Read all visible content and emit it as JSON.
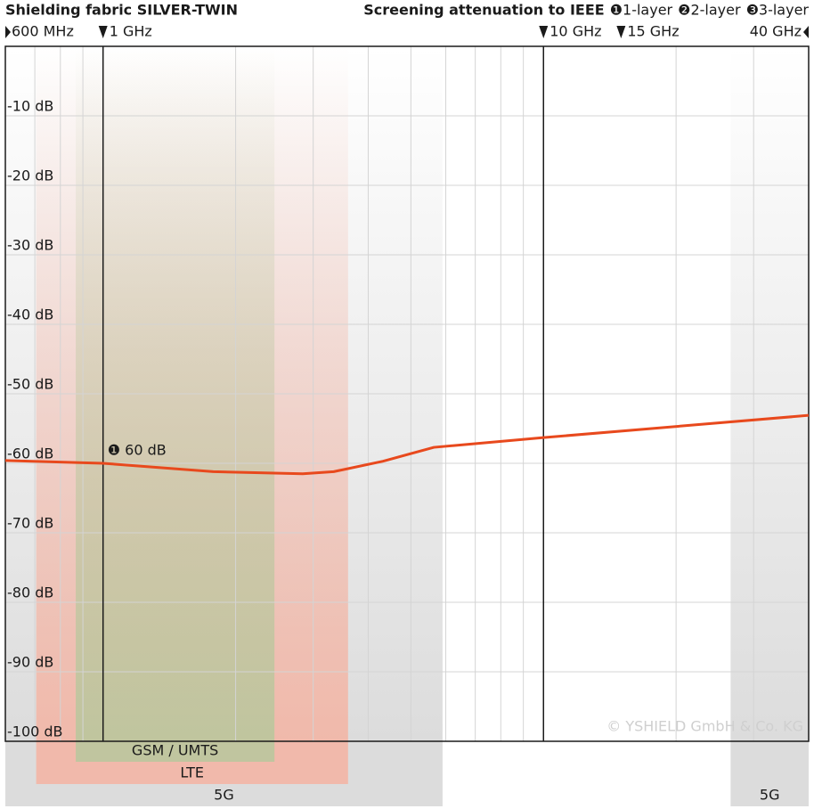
{
  "chart_data": {
    "type": "line",
    "title": "Shielding fabric SILVER-TWIN",
    "subtitle": "Screening attenuation to IEEE",
    "other_layers": [
      "❷2-layer",
      "❸3-layer"
    ],
    "xscale": "log",
    "xlim": [
      0.6,
      40
    ],
    "xticks": [
      {
        "value": 0.6,
        "label": "600 MHz"
      },
      {
        "value": 1,
        "label": "1 GHz"
      },
      {
        "value": 10,
        "label": "10 GHz"
      },
      {
        "value": 15,
        "label": "15 GHz"
      },
      {
        "value": 40,
        "label": "40 GHz"
      }
    ],
    "x_major_lines": [
      1,
      10
    ],
    "x_grid": [
      0.7,
      0.8,
      0.9,
      2,
      3,
      4,
      5,
      6,
      7,
      8,
      9,
      20,
      30
    ],
    "ylim": [
      -100,
      0
    ],
    "yticks": [
      {
        "value": -10,
        "label": "-10 dB"
      },
      {
        "value": -20,
        "label": "-20 dB"
      },
      {
        "value": -30,
        "label": "-30 dB"
      },
      {
        "value": -40,
        "label": "-40 dB"
      },
      {
        "value": -50,
        "label": "-50 dB"
      },
      {
        "value": -60,
        "label": "-60 dB"
      },
      {
        "value": -70,
        "label": "-70 dB"
      },
      {
        "value": -80,
        "label": "-80 dB"
      },
      {
        "value": -90,
        "label": "-90 dB"
      },
      {
        "value": -100,
        "label": "-100 dB"
      }
    ],
    "grid": true,
    "series": [
      {
        "name": "❶1-layer",
        "color": "#e8491d",
        "x": [
          0.6,
          1,
          1.78,
          2.84,
          3.34,
          4.32,
          5.64,
          10,
          40
        ],
        "values": [
          -59.6,
          -60,
          -61.2,
          -61.5,
          -61.2,
          -59.7,
          -57.7,
          -56.3,
          -53.1
        ]
      }
    ],
    "annotation": "❶ 60 dB",
    "bands": [
      {
        "name": "5G",
        "start": 0.6,
        "end": 5.9,
        "color": "#d6d6d6"
      },
      {
        "name": "LTE",
        "start": 0.705,
        "end": 3.6,
        "color": "#f4b3a2"
      },
      {
        "name": "GSM / UMTS",
        "start": 0.867,
        "end": 2.45,
        "color": "#b7c79c"
      },
      {
        "name": "5G",
        "start": 26.6,
        "end": 40,
        "color": "#d6d6d6"
      }
    ],
    "copyright": "© YSHIELD GmbH & Co. KG"
  }
}
